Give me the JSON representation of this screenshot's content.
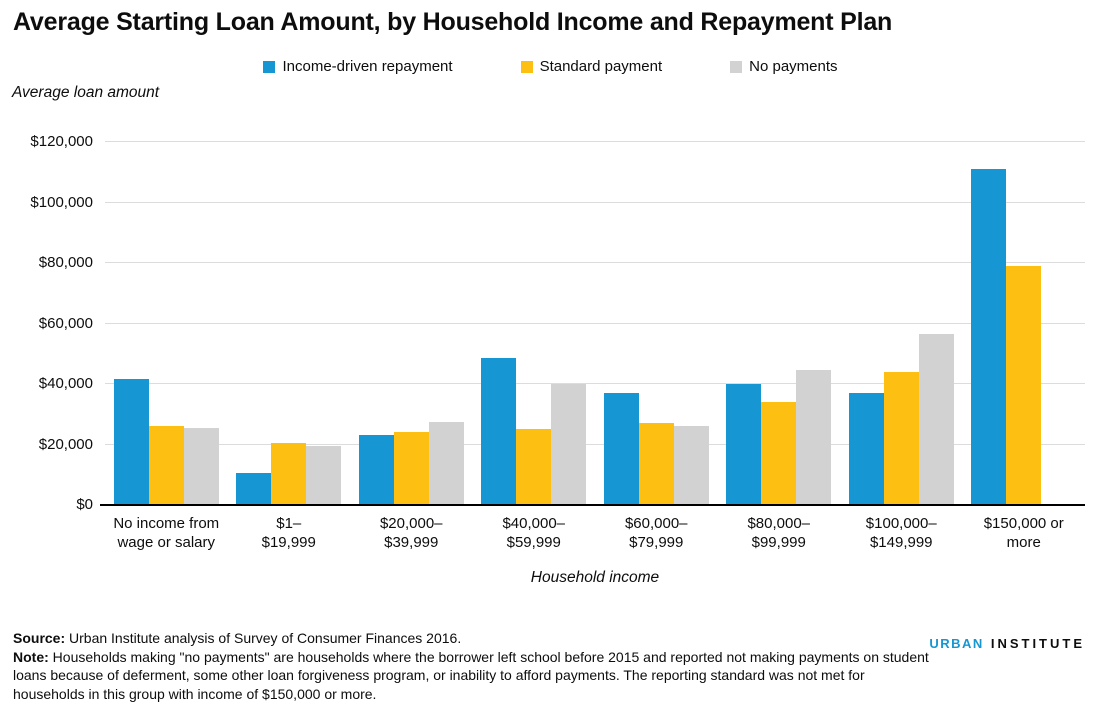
{
  "title": "Average Starting Loan Amount, by Household Income and Repayment Plan",
  "chart_data": {
    "type": "bar",
    "title": "Average Starting Loan Amount, by Household Income and Repayment Plan",
    "xlabel": "Household income",
    "ylabel": "Average loan amount",
    "ylim": [
      0,
      120000
    ],
    "yticks": [
      0,
      20000,
      40000,
      60000,
      80000,
      100000,
      120000
    ],
    "ytick_labels": [
      "$0",
      "$20,000",
      "$40,000",
      "$60,000",
      "$80,000",
      "$100,000",
      "$120,000"
    ],
    "grid": true,
    "legend_position": "top",
    "categories": [
      "No income from wage or salary",
      "$1–$19,999",
      "$20,000–$39,999",
      "$40,000–$59,999",
      "$60,000–$79,999",
      "$80,000–$99,999",
      "$100,000–$149,999",
      "$150,000 or more"
    ],
    "category_lines": [
      [
        "No income from",
        "wage or salary"
      ],
      [
        "$1–",
        "$19,999"
      ],
      [
        "$20,000–",
        "$39,999"
      ],
      [
        "$40,000–",
        "$59,999"
      ],
      [
        "$60,000–",
        "$79,999"
      ],
      [
        "$80,000–",
        "$99,999"
      ],
      [
        "$100,000–",
        "$149,999"
      ],
      [
        "$150,000 or",
        "more"
      ]
    ],
    "series": [
      {
        "name": "Income-driven repayment",
        "color": "#1696d2",
        "values": [
          41500,
          10500,
          23000,
          48500,
          37000,
          40000,
          37000,
          111000
        ]
      },
      {
        "name": "Standard payment",
        "color": "#fdbf11",
        "values": [
          26000,
          20500,
          24000,
          25000,
          27000,
          34000,
          44000,
          79000
        ]
      },
      {
        "name": "No payments",
        "color": "#d2d2d2",
        "values": [
          25500,
          19500,
          27500,
          40000,
          26000,
          44500,
          56500,
          null
        ]
      }
    ]
  },
  "footer": {
    "source_label": "Source:",
    "source_text": " Urban Institute analysis of Survey of Consumer Finances 2016.",
    "note_label": "Note:",
    "note_text": " Households making \"no payments\" are households where the borrower left school before 2015 and reported not making payments on student loans because of deferment, some other loan forgiveness program, or inability to afford payments. The reporting standard was not met for households in this group with income of $150,000 or more."
  },
  "logo": {
    "part1": "URBAN",
    "part2": "INSTITUTE"
  },
  "colors": {
    "accent_blue": "#1696d2",
    "accent_yellow": "#fdbf11",
    "accent_gray": "#d2d2d2",
    "gridline": "#dcdcdc",
    "axis": "#000000",
    "text": "#0d0d0d"
  }
}
